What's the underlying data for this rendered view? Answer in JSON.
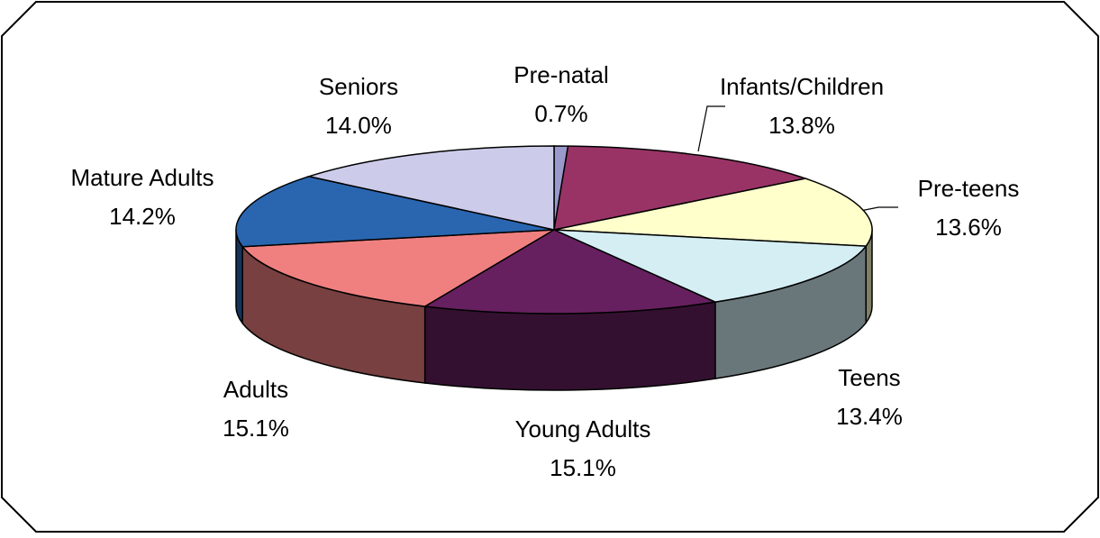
{
  "chart_data": {
    "type": "pie",
    "categories": [
      "Pre-natal",
      "Infants/Children",
      "Pre-teens",
      "Teens",
      "Young Adults",
      "Adults",
      "Mature Adults",
      "Seniors"
    ],
    "values": [
      0.7,
      13.8,
      13.6,
      13.4,
      15.1,
      15.1,
      14.2,
      14.0
    ],
    "value_labels": [
      "0.7%",
      "13.8%",
      "13.6%",
      "13.4%",
      "15.1%",
      "15.1%",
      "14.2%",
      "14.0%"
    ],
    "colors": [
      "#9999cc",
      "#993366",
      "#ffffcc",
      "#d4eef4",
      "#66205f",
      "#f08080",
      "#2a66b0",
      "#ccccea"
    ]
  }
}
